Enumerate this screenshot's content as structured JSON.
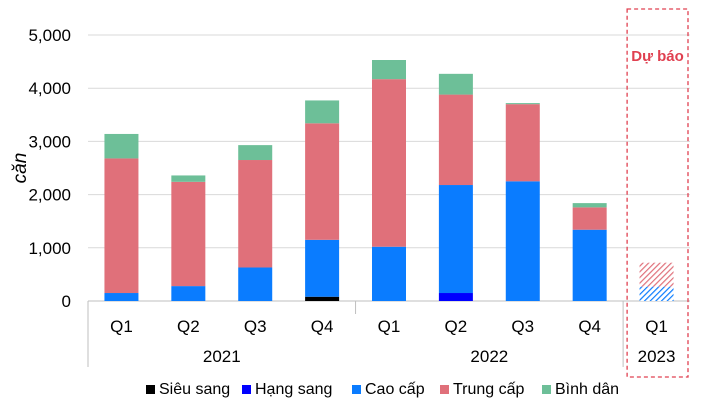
{
  "chart_data": {
    "type": "bar",
    "stacked": true,
    "ylabel": "căn",
    "ylim": [
      0,
      5000
    ],
    "y_ticks": [
      0,
      1000,
      2000,
      3000,
      4000,
      5000
    ],
    "y_tick_labels": [
      "0",
      "1,000",
      "2,000",
      "3,000",
      "4,000",
      "5,000"
    ],
    "categories": [
      "Q1",
      "Q2",
      "Q3",
      "Q4",
      "Q1",
      "Q2",
      "Q3",
      "Q4",
      "Q1"
    ],
    "year_groups": [
      {
        "label": "2021",
        "count": 4
      },
      {
        "label": "2022",
        "count": 4
      },
      {
        "label": "2023",
        "count": 1
      }
    ],
    "forecast_label": "Dự báo",
    "forecast_categories": [
      8
    ],
    "series": [
      {
        "name": "Siêu sang",
        "color": "#000000",
        "values": [
          0,
          0,
          0,
          80,
          0,
          0,
          0,
          0,
          0
        ]
      },
      {
        "name": "Hạng sang",
        "color": "#0000ff",
        "values": [
          0,
          0,
          0,
          0,
          0,
          150,
          0,
          0,
          0
        ]
      },
      {
        "name": "Cao cấp",
        "color": "#0a7cff",
        "values": [
          150,
          280,
          630,
          1070,
          1020,
          2030,
          2250,
          1340,
          270
        ]
      },
      {
        "name": "Trung cấp",
        "color": "#e0707a",
        "values": [
          2530,
          1960,
          2020,
          2190,
          3150,
          1700,
          1450,
          420,
          450
        ]
      },
      {
        "name": "Bình dân",
        "color": "#6dbf98",
        "values": [
          460,
          120,
          280,
          430,
          360,
          390,
          20,
          80,
          0
        ]
      }
    ],
    "legend_position": "bottom",
    "grid": true,
    "forecast_box_color": "#e04050"
  }
}
